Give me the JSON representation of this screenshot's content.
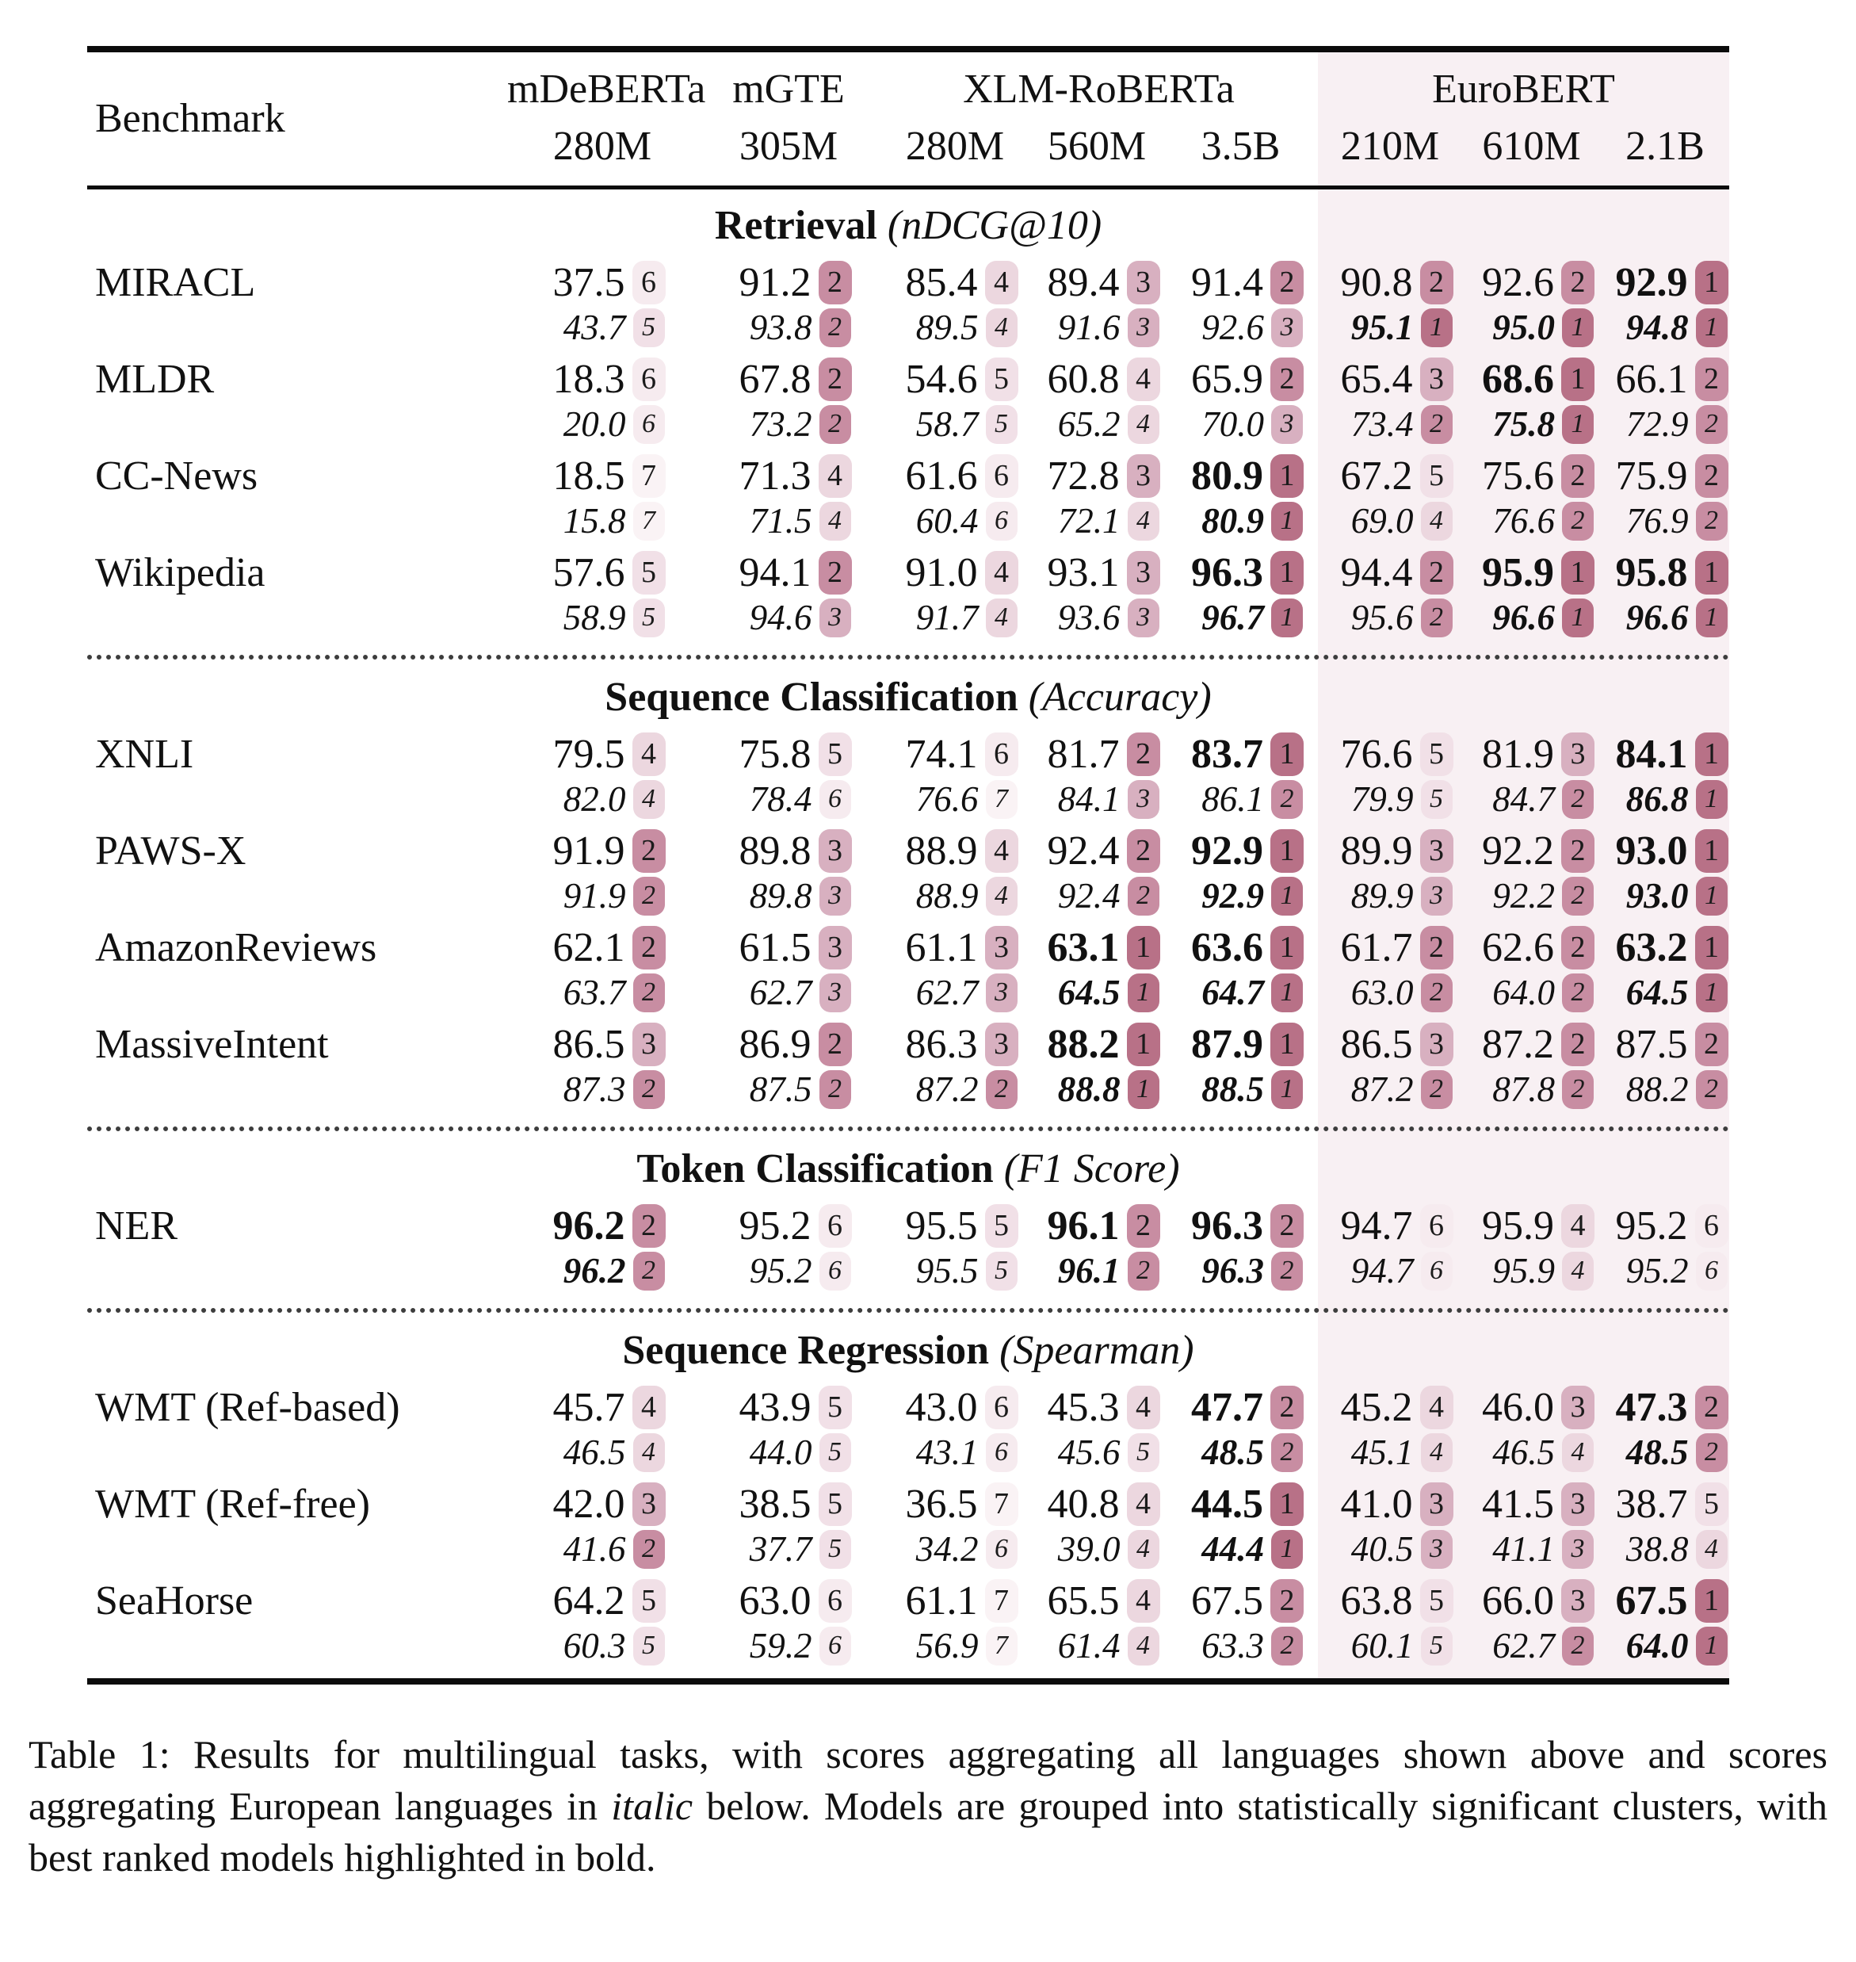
{
  "rank_colors": {
    "r1": "#b87187",
    "r2": "#c88da2",
    "r3": "#d8b0c0",
    "r4": "#ecd7df",
    "r5": "#f1e0e7",
    "r6": "#f6ebef",
    "r7": "#faf3f5"
  },
  "highlight_band_color": "#f8f0f3",
  "table": {
    "header": {
      "benchmark_label": "Benchmark",
      "groups": [
        {
          "name": "mDeBERTa"
        },
        {
          "name": "mGTE"
        },
        {
          "name": "XLM-RoBERTa"
        },
        {
          "name": "EuroBERT",
          "highlight": true
        }
      ],
      "sizes": [
        "280M",
        "305M",
        "280M",
        "560M",
        "3.5B",
        "210M",
        "610M",
        "2.1B"
      ]
    },
    "sections": [
      {
        "title": "Retrieval",
        "metric": "(nDCG@10)",
        "rows": [
          {
            "benchmark": "MIRACL",
            "cells": [
              {
                "t": "37.5",
                "tr": 6,
                "b": "43.7",
                "br": 5
              },
              {
                "t": "91.2",
                "tr": 2,
                "b": "93.8",
                "br": 2
              },
              {
                "t": "85.4",
                "tr": 4,
                "b": "89.5",
                "br": 4
              },
              {
                "t": "89.4",
                "tr": 3,
                "b": "91.6",
                "br": 3
              },
              {
                "t": "91.4",
                "tr": 2,
                "b": "92.6",
                "br": 3
              },
              {
                "t": "90.8",
                "tr": 2,
                "b": "95.1",
                "br": 1,
                "bb": true
              },
              {
                "t": "92.6",
                "tr": 2,
                "b": "95.0",
                "br": 1,
                "bb": true
              },
              {
                "t": "92.9",
                "tr": 1,
                "tb": true,
                "b": "94.8",
                "br": 1,
                "bb": true
              }
            ]
          },
          {
            "benchmark": "MLDR",
            "cells": [
              {
                "t": "18.3",
                "tr": 6,
                "b": "20.0",
                "br": 6
              },
              {
                "t": "67.8",
                "tr": 2,
                "b": "73.2",
                "br": 2
              },
              {
                "t": "54.6",
                "tr": 5,
                "b": "58.7",
                "br": 5
              },
              {
                "t": "60.8",
                "tr": 4,
                "b": "65.2",
                "br": 4
              },
              {
                "t": "65.9",
                "tr": 2,
                "b": "70.0",
                "br": 3
              },
              {
                "t": "65.4",
                "tr": 3,
                "b": "73.4",
                "br": 2
              },
              {
                "t": "68.6",
                "tr": 1,
                "tb": true,
                "b": "75.8",
                "br": 1,
                "bb": true
              },
              {
                "t": "66.1",
                "tr": 2,
                "b": "72.9",
                "br": 2
              }
            ]
          },
          {
            "benchmark": "CC-News",
            "cells": [
              {
                "t": "18.5",
                "tr": 7,
                "b": "15.8",
                "br": 7
              },
              {
                "t": "71.3",
                "tr": 4,
                "b": "71.5",
                "br": 4
              },
              {
                "t": "61.6",
                "tr": 6,
                "b": "60.4",
                "br": 6
              },
              {
                "t": "72.8",
                "tr": 3,
                "b": "72.1",
                "br": 4
              },
              {
                "t": "80.9",
                "tr": 1,
                "tb": true,
                "b": "80.9",
                "br": 1,
                "bb": true
              },
              {
                "t": "67.2",
                "tr": 5,
                "b": "69.0",
                "br": 4
              },
              {
                "t": "75.6",
                "tr": 2,
                "b": "76.6",
                "br": 2
              },
              {
                "t": "75.9",
                "tr": 2,
                "b": "76.9",
                "br": 2
              }
            ]
          },
          {
            "benchmark": "Wikipedia",
            "cells": [
              {
                "t": "57.6",
                "tr": 5,
                "b": "58.9",
                "br": 5
              },
              {
                "t": "94.1",
                "tr": 2,
                "b": "94.6",
                "br": 3
              },
              {
                "t": "91.0",
                "tr": 4,
                "b": "91.7",
                "br": 4
              },
              {
                "t": "93.1",
                "tr": 3,
                "b": "93.6",
                "br": 3
              },
              {
                "t": "96.3",
                "tr": 1,
                "tb": true,
                "b": "96.7",
                "br": 1,
                "bb": true
              },
              {
                "t": "94.4",
                "tr": 2,
                "b": "95.6",
                "br": 2
              },
              {
                "t": "95.9",
                "tr": 1,
                "tb": true,
                "b": "96.6",
                "br": 1,
                "bb": true
              },
              {
                "t": "95.8",
                "tr": 1,
                "tb": true,
                "b": "96.6",
                "br": 1,
                "bb": true
              }
            ]
          }
        ]
      },
      {
        "title": "Sequence Classification",
        "metric": "(Accuracy)",
        "rows": [
          {
            "benchmark": "XNLI",
            "cells": [
              {
                "t": "79.5",
                "tr": 4,
                "b": "82.0",
                "br": 4
              },
              {
                "t": "75.8",
                "tr": 5,
                "b": "78.4",
                "br": 6
              },
              {
                "t": "74.1",
                "tr": 6,
                "b": "76.6",
                "br": 7
              },
              {
                "t": "81.7",
                "tr": 2,
                "b": "84.1",
                "br": 3
              },
              {
                "t": "83.7",
                "tr": 1,
                "tb": true,
                "b": "86.1",
                "br": 2
              },
              {
                "t": "76.6",
                "tr": 5,
                "b": "79.9",
                "br": 5
              },
              {
                "t": "81.9",
                "tr": 3,
                "b": "84.7",
                "br": 2
              },
              {
                "t": "84.1",
                "tr": 1,
                "tb": true,
                "b": "86.8",
                "br": 1,
                "bb": true
              }
            ]
          },
          {
            "benchmark": "PAWS-X",
            "cells": [
              {
                "t": "91.9",
                "tr": 2,
                "b": "91.9",
                "br": 2
              },
              {
                "t": "89.8",
                "tr": 3,
                "b": "89.8",
                "br": 3
              },
              {
                "t": "88.9",
                "tr": 4,
                "b": "88.9",
                "br": 4
              },
              {
                "t": "92.4",
                "tr": 2,
                "b": "92.4",
                "br": 2
              },
              {
                "t": "92.9",
                "tr": 1,
                "tb": true,
                "b": "92.9",
                "br": 1,
                "bb": true
              },
              {
                "t": "89.9",
                "tr": 3,
                "b": "89.9",
                "br": 3
              },
              {
                "t": "92.2",
                "tr": 2,
                "b": "92.2",
                "br": 2
              },
              {
                "t": "93.0",
                "tr": 1,
                "tb": true,
                "b": "93.0",
                "br": 1,
                "bb": true
              }
            ]
          },
          {
            "benchmark": "AmazonReviews",
            "cells": [
              {
                "t": "62.1",
                "tr": 2,
                "b": "63.7",
                "br": 2
              },
              {
                "t": "61.5",
                "tr": 3,
                "b": "62.7",
                "br": 3
              },
              {
                "t": "61.1",
                "tr": 3,
                "b": "62.7",
                "br": 3
              },
              {
                "t": "63.1",
                "tr": 1,
                "tb": true,
                "b": "64.5",
                "br": 1,
                "bb": true
              },
              {
                "t": "63.6",
                "tr": 1,
                "tb": true,
                "b": "64.7",
                "br": 1,
                "bb": true
              },
              {
                "t": "61.7",
                "tr": 2,
                "b": "63.0",
                "br": 2
              },
              {
                "t": "62.6",
                "tr": 2,
                "b": "64.0",
                "br": 2
              },
              {
                "t": "63.2",
                "tr": 1,
                "tb": true,
                "b": "64.5",
                "br": 1,
                "bb": true
              }
            ]
          },
          {
            "benchmark": "MassiveIntent",
            "cells": [
              {
                "t": "86.5",
                "tr": 3,
                "b": "87.3",
                "br": 2
              },
              {
                "t": "86.9",
                "tr": 2,
                "b": "87.5",
                "br": 2
              },
              {
                "t": "86.3",
                "tr": 3,
                "b": "87.2",
                "br": 2
              },
              {
                "t": "88.2",
                "tr": 1,
                "tb": true,
                "b": "88.8",
                "br": 1,
                "bb": true
              },
              {
                "t": "87.9",
                "tr": 1,
                "tb": true,
                "b": "88.5",
                "br": 1,
                "bb": true
              },
              {
                "t": "86.5",
                "tr": 3,
                "b": "87.2",
                "br": 2
              },
              {
                "t": "87.2",
                "tr": 2,
                "b": "87.8",
                "br": 2
              },
              {
                "t": "87.5",
                "tr": 2,
                "b": "88.2",
                "br": 2
              }
            ]
          }
        ]
      },
      {
        "title": "Token Classification",
        "metric": "(F1 Score)",
        "rows": [
          {
            "benchmark": "NER",
            "cells": [
              {
                "t": "96.2",
                "tr": 2,
                "tb": true,
                "b": "96.2",
                "br": 2,
                "bb": true
              },
              {
                "t": "95.2",
                "tr": 6,
                "b": "95.2",
                "br": 6
              },
              {
                "t": "95.5",
                "tr": 5,
                "b": "95.5",
                "br": 5
              },
              {
                "t": "96.1",
                "tr": 2,
                "tb": true,
                "b": "96.1",
                "br": 2,
                "bb": true
              },
              {
                "t": "96.3",
                "tr": 2,
                "tb": true,
                "b": "96.3",
                "br": 2,
                "bb": true
              },
              {
                "t": "94.7",
                "tr": 6,
                "b": "94.7",
                "br": 6
              },
              {
                "t": "95.9",
                "tr": 4,
                "b": "95.9",
                "br": 4
              },
              {
                "t": "95.2",
                "tr": 6,
                "b": "95.2",
                "br": 6
              }
            ]
          }
        ]
      },
      {
        "title": "Sequence Regression",
        "metric": "(Spearman)",
        "rows": [
          {
            "benchmark": "WMT (Ref-based)",
            "cells": [
              {
                "t": "45.7",
                "tr": 4,
                "b": "46.5",
                "br": 4
              },
              {
                "t": "43.9",
                "tr": 5,
                "b": "44.0",
                "br": 5
              },
              {
                "t": "43.0",
                "tr": 6,
                "b": "43.1",
                "br": 6
              },
              {
                "t": "45.3",
                "tr": 4,
                "b": "45.6",
                "br": 5
              },
              {
                "t": "47.7",
                "tr": 2,
                "tb": true,
                "b": "48.5",
                "br": 2,
                "bb": true
              },
              {
                "t": "45.2",
                "tr": 4,
                "b": "45.1",
                "br": 4
              },
              {
                "t": "46.0",
                "tr": 3,
                "b": "46.5",
                "br": 4
              },
              {
                "t": "47.3",
                "tr": 2,
                "tb": true,
                "b": "48.5",
                "br": 2,
                "bb": true
              }
            ]
          },
          {
            "benchmark": "WMT (Ref-free)",
            "cells": [
              {
                "t": "42.0",
                "tr": 3,
                "b": "41.6",
                "br": 2
              },
              {
                "t": "38.5",
                "tr": 5,
                "b": "37.7",
                "br": 5
              },
              {
                "t": "36.5",
                "tr": 7,
                "b": "34.2",
                "br": 6
              },
              {
                "t": "40.8",
                "tr": 4,
                "b": "39.0",
                "br": 4
              },
              {
                "t": "44.5",
                "tr": 1,
                "tb": true,
                "b": "44.4",
                "br": 1,
                "bb": true
              },
              {
                "t": "41.0",
                "tr": 3,
                "b": "40.5",
                "br": 3
              },
              {
                "t": "41.5",
                "tr": 3,
                "b": "41.1",
                "br": 3
              },
              {
                "t": "38.7",
                "tr": 5,
                "b": "38.8",
                "br": 4
              }
            ]
          },
          {
            "benchmark": "SeaHorse",
            "cells": [
              {
                "t": "64.2",
                "tr": 5,
                "b": "60.3",
                "br": 5
              },
              {
                "t": "63.0",
                "tr": 6,
                "b": "59.2",
                "br": 6
              },
              {
                "t": "61.1",
                "tr": 7,
                "b": "56.9",
                "br": 7
              },
              {
                "t": "65.5",
                "tr": 4,
                "b": "61.4",
                "br": 4
              },
              {
                "t": "67.5",
                "tr": 2,
                "b": "63.3",
                "br": 2
              },
              {
                "t": "63.8",
                "tr": 5,
                "b": "60.1",
                "br": 5
              },
              {
                "t": "66.0",
                "tr": 3,
                "b": "62.7",
                "br": 2
              },
              {
                "t": "67.5",
                "tr": 1,
                "tb": true,
                "b": "64.0",
                "br": 1,
                "bb": true
              }
            ]
          }
        ]
      }
    ]
  },
  "caption": {
    "prefix": "Table 1: Results for multilingual tasks, with scores aggregating all languages shown above and scores aggregating European languages in ",
    "italic_word": "italic",
    "suffix": " below.  Models are grouped into statistically significant clusters, with best ranked models highlighted in bold."
  }
}
